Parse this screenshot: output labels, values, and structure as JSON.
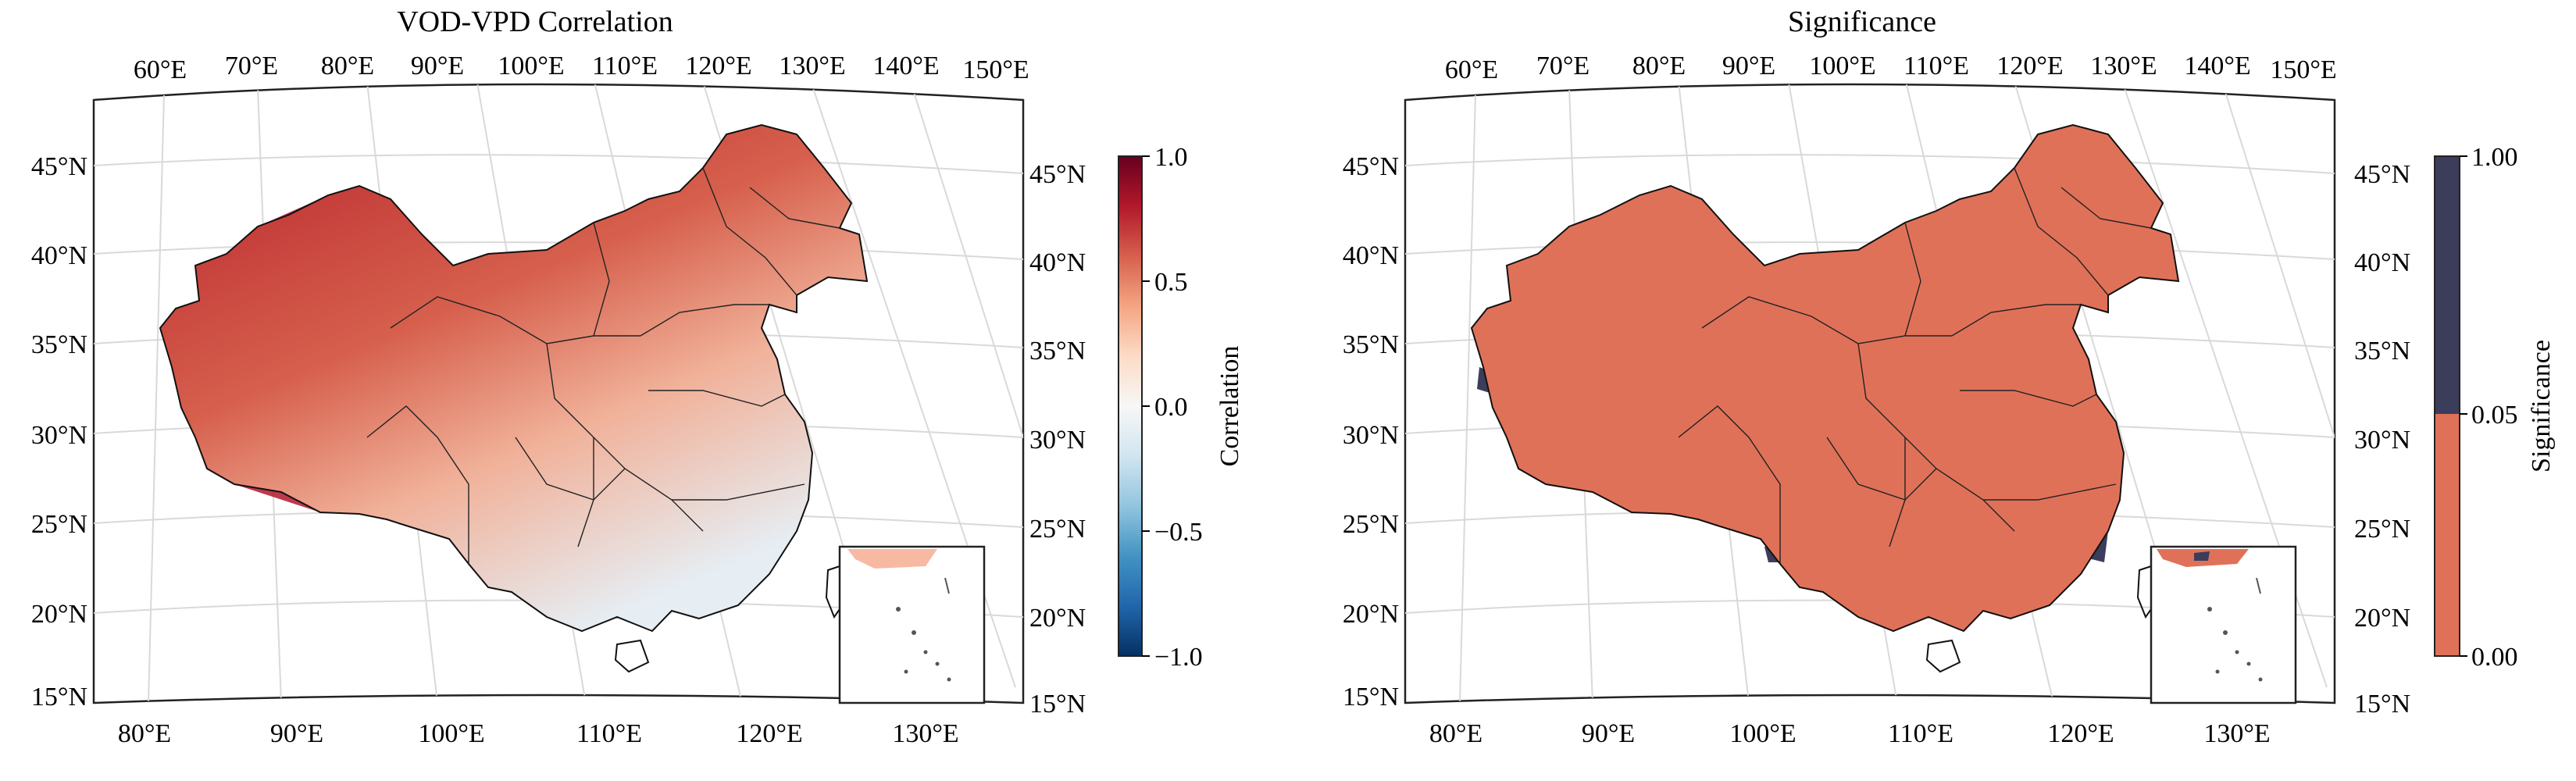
{
  "panels": [
    {
      "title": "VOD-VPD Correlation",
      "top_ticks": [
        "60°E",
        "70°E",
        "80°E",
        "90°E",
        "100°E",
        "110°E",
        "120°E",
        "130°E",
        "140°E",
        "150°E"
      ],
      "bottom_ticks": [
        "80°E",
        "90°E",
        "100°E",
        "110°E",
        "120°E",
        "130°E"
      ],
      "left_ticks": [
        "45°N",
        "40°N",
        "35°N",
        "30°N",
        "25°N",
        "20°N",
        "15°N"
      ],
      "right_ticks": [
        "45°N",
        "40°N",
        "35°N",
        "30°N",
        "25°N",
        "20°N",
        "15°N"
      ],
      "colorbar": {
        "label": "Correlation",
        "ticks": [
          "1.0",
          "0.5",
          "0.0",
          "−0.5",
          "−1.0"
        ],
        "colormap": [
          "#053061",
          "#2166ac",
          "#4393c3",
          "#92c5de",
          "#d1e5f0",
          "#f7f7f7",
          "#fddbc7",
          "#f4a582",
          "#d6604d",
          "#b2182b",
          "#67001f"
        ]
      }
    },
    {
      "title": "Significance",
      "top_ticks": [
        "60°E",
        "70°E",
        "80°E",
        "90°E",
        "100°E",
        "110°E",
        "120°E",
        "130°E",
        "140°E",
        "150°E"
      ],
      "bottom_ticks": [
        "80°E",
        "90°E",
        "100°E",
        "110°E",
        "120°E",
        "130°E"
      ],
      "left_ticks": [
        "45°N",
        "40°N",
        "35°N",
        "30°N",
        "25°N",
        "20°N",
        "15°N"
      ],
      "right_ticks": [
        "45°N",
        "40°N",
        "35°N",
        "30°N",
        "25°N",
        "20°N",
        "15°N"
      ],
      "colorbar": {
        "label": "Significance",
        "ticks": [
          "1.00",
          "0.05",
          "0.00"
        ],
        "colors": {
          "significant": "#e07159",
          "not_significant": "#3b3d5a"
        }
      }
    }
  ]
}
